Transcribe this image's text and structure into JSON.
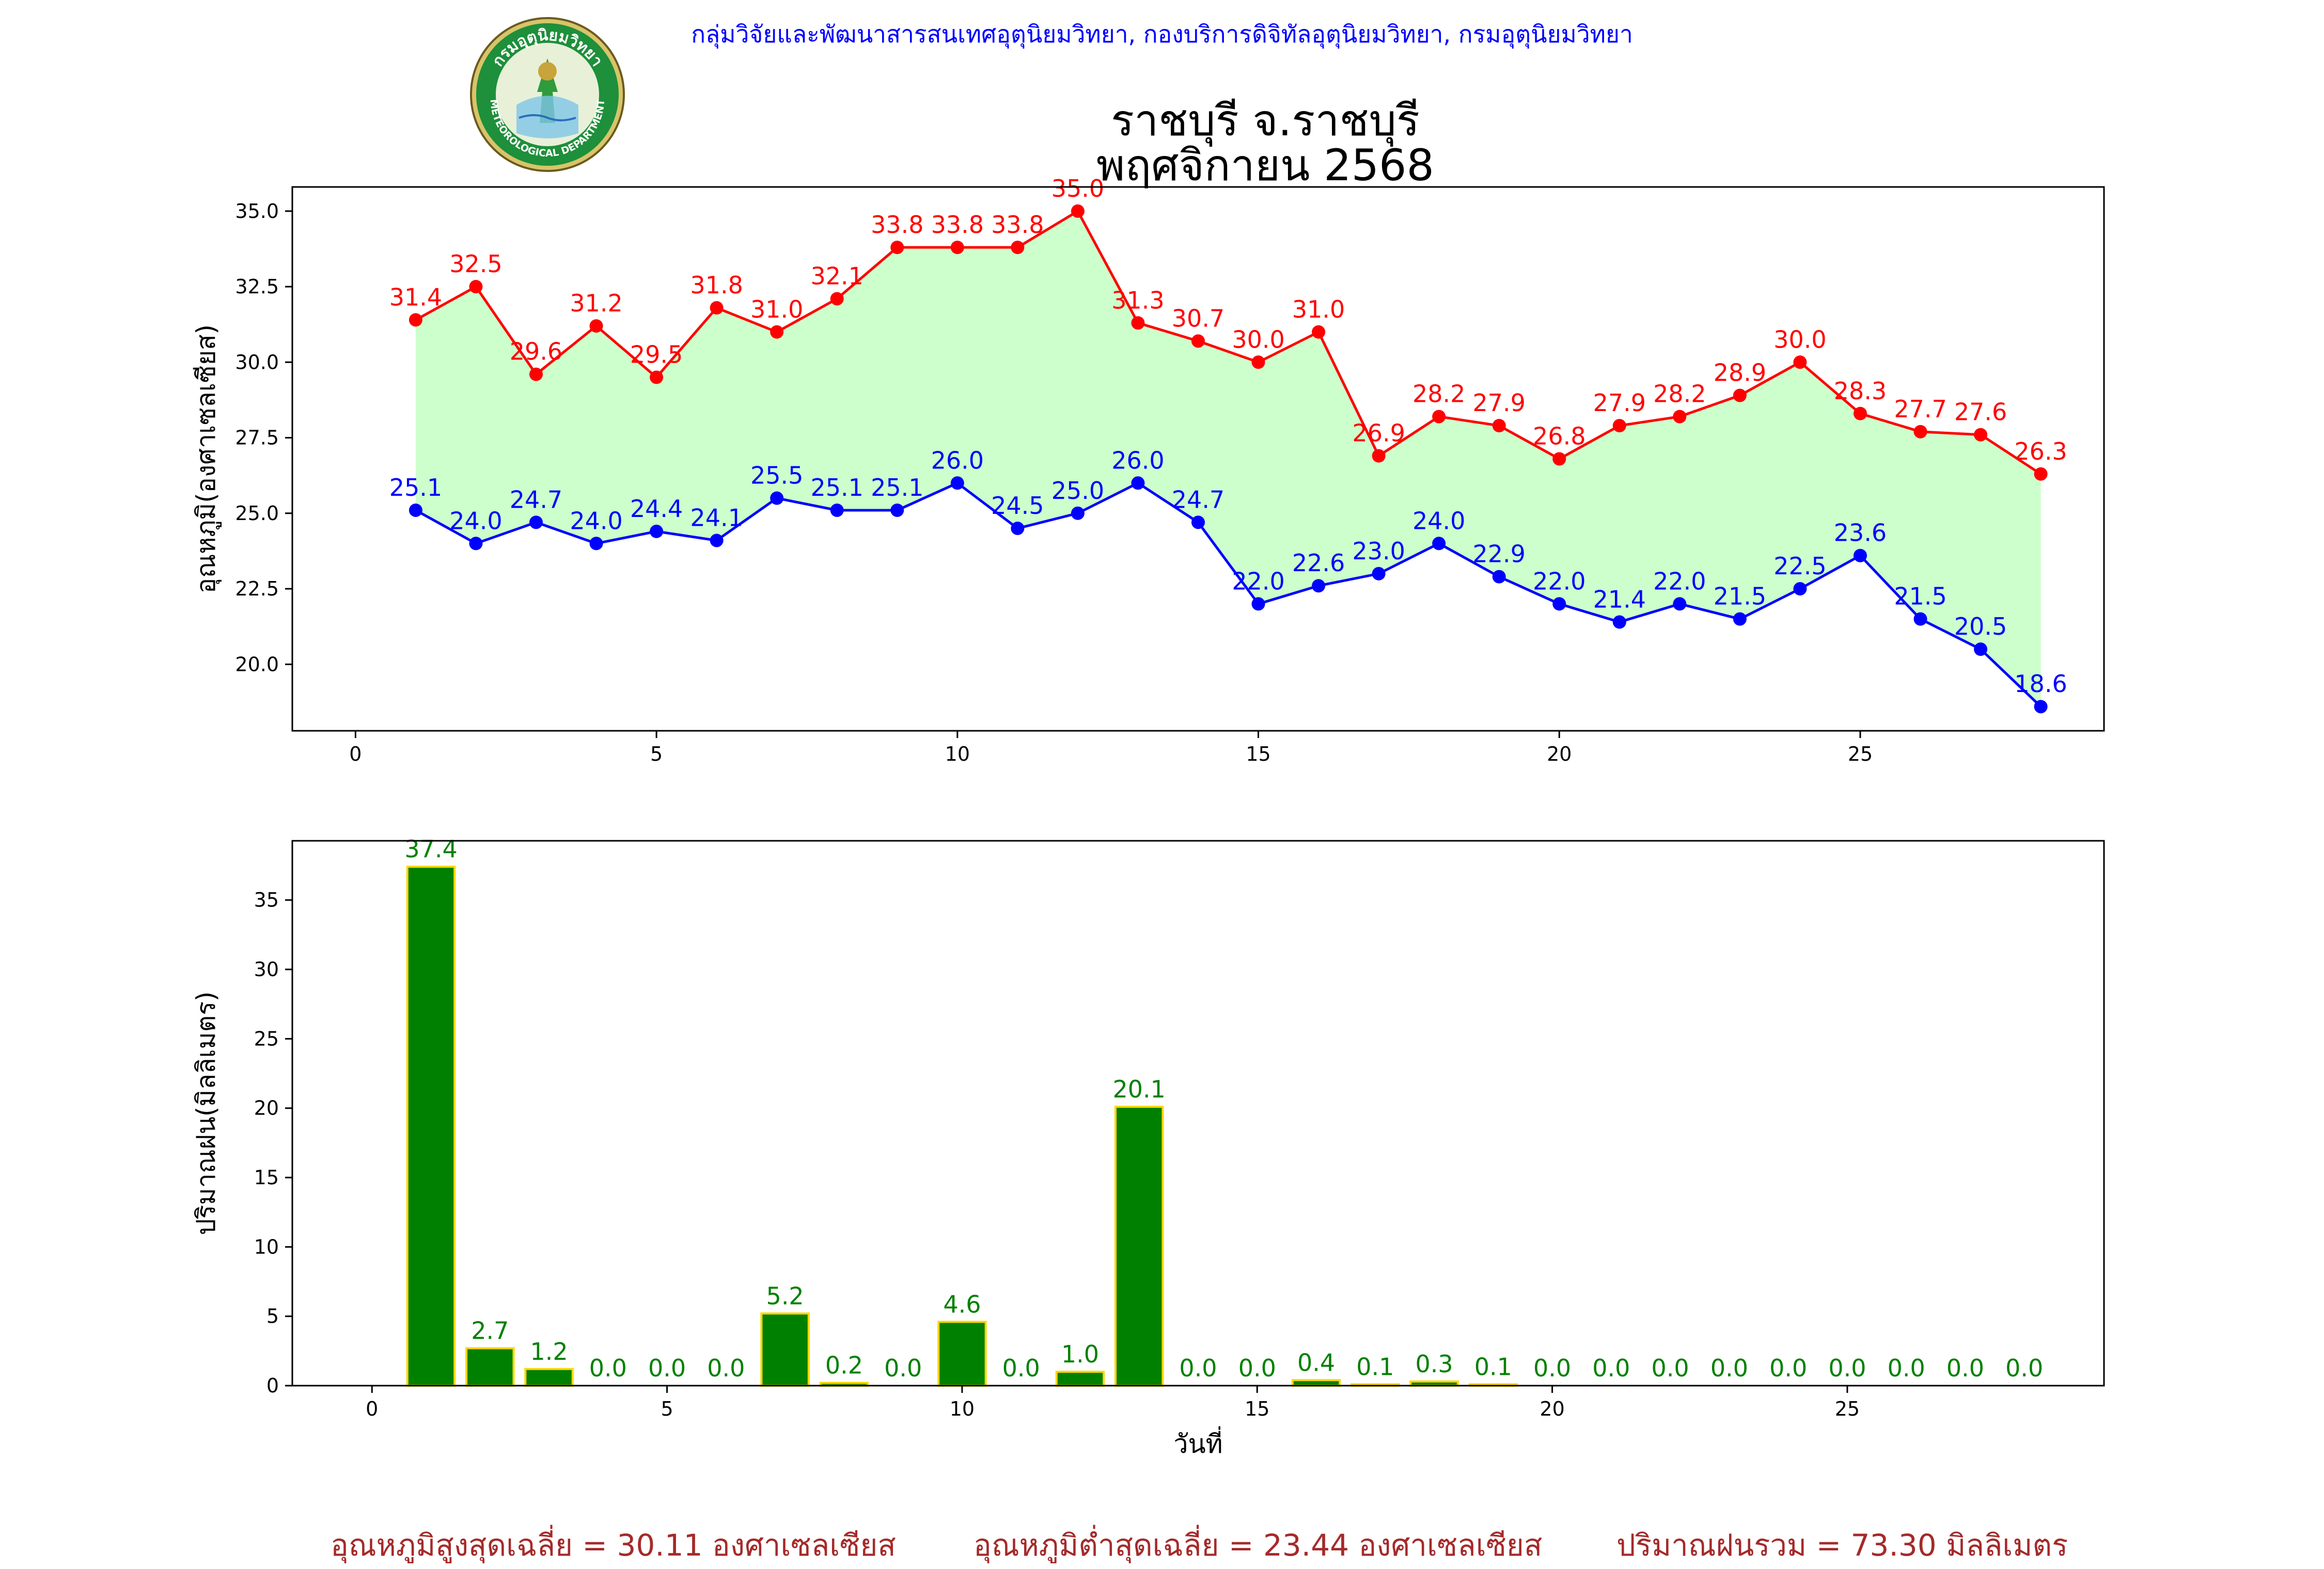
{
  "header": {
    "org": "กลุ่มวิจัยและพัฒนาสารสนเทศอุตุนิยมวิทยา, กองบริการดิจิทัลอุตุนิยมวิทยา, กรมอุตุนิยมวิทยา",
    "title_line1": "ราชบุรี จ.ราชบุรี",
    "title_line2": "พฤศจิกายน 2568",
    "logo_text_top": "กรมอุตุนิยมวิทยา",
    "logo_text_bottom": "METEOROLOGICAL DEPARTMENT"
  },
  "colors": {
    "max_line": "#ff0000",
    "min_line": "#0000ff",
    "fill": "#ccffcc",
    "bar": "#008000",
    "bar_edge": "#ffd700",
    "footer": "#a52a2a"
  },
  "chart_data": [
    {
      "type": "line",
      "ylabel": "อุณหภูมิ(องศาเซลเซียส)",
      "xlim": [
        -1.05,
        29.05
      ],
      "ylim": [
        17.8,
        35.8
      ],
      "xticks": [
        0,
        5,
        10,
        15,
        20,
        25
      ],
      "yticks": [
        20.0,
        22.5,
        25.0,
        27.5,
        30.0,
        32.5,
        35.0
      ],
      "x": [
        1,
        2,
        3,
        4,
        5,
        6,
        7,
        8,
        9,
        10,
        11,
        12,
        13,
        14,
        15,
        16,
        17,
        18,
        19,
        20,
        21,
        22,
        23,
        24,
        25,
        26,
        27,
        28
      ],
      "series": [
        {
          "name": "max",
          "color": "#ff0000",
          "values": [
            31.4,
            32.5,
            29.6,
            31.2,
            29.5,
            31.8,
            31.0,
            32.1,
            33.8,
            33.8,
            33.8,
            35.0,
            31.3,
            30.7,
            30.0,
            31.0,
            26.9,
            28.2,
            27.9,
            26.8,
            27.9,
            28.2,
            28.9,
            30.0,
            28.3,
            27.7,
            27.6,
            26.3
          ]
        },
        {
          "name": "min",
          "color": "#0000ff",
          "values": [
            25.1,
            24.0,
            24.7,
            24.0,
            24.4,
            24.1,
            25.5,
            25.1,
            25.1,
            26.0,
            24.5,
            25.0,
            26.0,
            24.7,
            22.0,
            22.6,
            23.0,
            24.0,
            22.9,
            22.0,
            21.4,
            22.0,
            21.5,
            22.5,
            23.6,
            21.5,
            20.5,
            18.6
          ]
        }
      ]
    },
    {
      "type": "bar",
      "ylabel": "ปริมาณฝน(มิลลิเมตร)",
      "xlabel": "วันที่",
      "xlim": [
        -1.35,
        29.35
      ],
      "ylim": [
        0,
        39.27
      ],
      "xticks": [
        0,
        5,
        10,
        15,
        20,
        25
      ],
      "yticks": [
        0,
        5,
        10,
        15,
        20,
        25,
        30,
        35
      ],
      "x": [
        1,
        2,
        3,
        4,
        5,
        6,
        7,
        8,
        9,
        10,
        11,
        12,
        13,
        14,
        15,
        16,
        17,
        18,
        19,
        20,
        21,
        22,
        23,
        24,
        25,
        26,
        27,
        28
      ],
      "values": [
        37.4,
        2.7,
        1.2,
        0.0,
        0.0,
        0.0,
        5.2,
        0.2,
        0.0,
        4.6,
        0.0,
        1.0,
        20.1,
        0.0,
        0.0,
        0.4,
        0.1,
        0.3,
        0.1,
        0.0,
        0.0,
        0.0,
        0.0,
        0.0,
        0.0,
        0.0,
        0.0,
        0.0
      ]
    }
  ],
  "footer": {
    "avg_max": "อุณหภูมิสูงสุดเฉลี่ย = 30.11 องศาเซลเซียส",
    "avg_min": "อุณหภูมิต่ำสุดเฉลี่ย = 23.44 องศาเซลเซียส",
    "total_rain": "ปริมาณฝนรวม = 73.30 มิลลิเมตร"
  }
}
